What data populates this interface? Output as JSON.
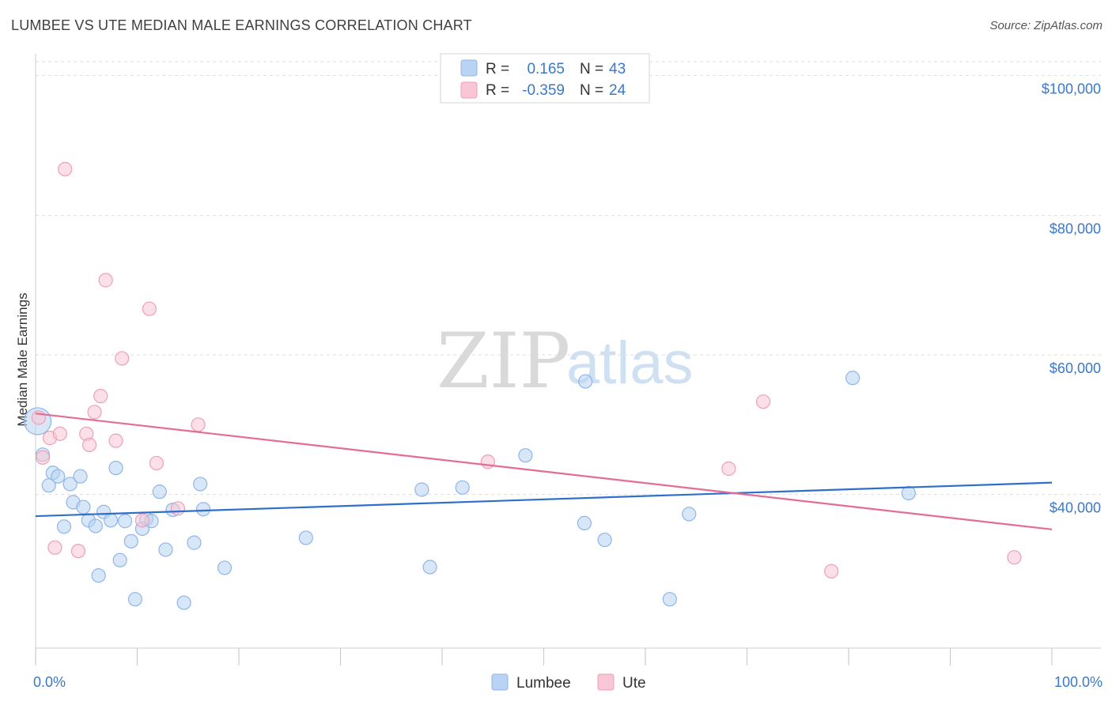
{
  "title": "LUMBEE VS UTE MEDIAN MALE EARNINGS CORRELATION CHART",
  "source": "Source: ZipAtlas.com",
  "watermark": {
    "zip": "ZIP",
    "atlas": "atlas"
  },
  "colors": {
    "lumbee_fill": "#b8d3f3",
    "lumbee_stroke": "#8fb6e6",
    "lumbee_line": "#2f6fcb",
    "ute_fill": "#f8c6d4",
    "ute_stroke": "#ee9fb7",
    "ute_line": "#e46c95",
    "axis_text": "#3a78c9",
    "grid": "#dddddd"
  },
  "legend": {
    "rows": [
      {
        "series": "Lumbee",
        "r_label": "R =",
        "r_value": "0.165",
        "n_label": "N =",
        "n_value": "43"
      },
      {
        "series": "Ute",
        "r_label": "R =",
        "r_value": "-0.359",
        "n_label": "N =",
        "n_value": "24"
      }
    ]
  },
  "bottom_legend": [
    "Lumbee",
    "Ute"
  ],
  "chart_data": {
    "type": "scatter",
    "title": "LUMBEE VS UTE MEDIAN MALE EARNINGS CORRELATION CHART",
    "xlabel": "",
    "ylabel": "Median Male Earnings",
    "xlim": [
      0,
      100
    ],
    "ylim": [
      18000,
      102000
    ],
    "x_tick_labels": [
      "0.0%",
      "100.0%"
    ],
    "y_ticks": [
      40000,
      60000,
      80000,
      100000
    ],
    "y_tick_labels": [
      "$40,000",
      "$60,000",
      "$80,000",
      "$100,000"
    ],
    "series": [
      {
        "name": "Lumbee",
        "r": 0.165,
        "n": 43,
        "trend": {
          "x": [
            0,
            100
          ],
          "y": [
            36900,
            41700
          ]
        },
        "points": [
          {
            "x": 0.2,
            "y": 50500,
            "big": true
          },
          {
            "x": 0.7,
            "y": 45700
          },
          {
            "x": 1.3,
            "y": 41300
          },
          {
            "x": 1.7,
            "y": 43100
          },
          {
            "x": 2.2,
            "y": 42600
          },
          {
            "x": 2.8,
            "y": 35400
          },
          {
            "x": 3.4,
            "y": 41500
          },
          {
            "x": 3.7,
            "y": 38900
          },
          {
            "x": 4.4,
            "y": 42600
          },
          {
            "x": 4.7,
            "y": 38200
          },
          {
            "x": 5.2,
            "y": 36300
          },
          {
            "x": 5.9,
            "y": 35500
          },
          {
            "x": 6.2,
            "y": 28400
          },
          {
            "x": 6.7,
            "y": 37500
          },
          {
            "x": 7.4,
            "y": 36300
          },
          {
            "x": 7.9,
            "y": 43800
          },
          {
            "x": 8.3,
            "y": 30600
          },
          {
            "x": 8.8,
            "y": 36200
          },
          {
            "x": 9.4,
            "y": 33300
          },
          {
            "x": 9.8,
            "y": 25000
          },
          {
            "x": 10.5,
            "y": 35100
          },
          {
            "x": 10.9,
            "y": 36500
          },
          {
            "x": 11.4,
            "y": 36200
          },
          {
            "x": 12.2,
            "y": 40400
          },
          {
            "x": 12.8,
            "y": 32100
          },
          {
            "x": 13.5,
            "y": 37800
          },
          {
            "x": 14.6,
            "y": 24500
          },
          {
            "x": 15.6,
            "y": 33100
          },
          {
            "x": 16.2,
            "y": 41500
          },
          {
            "x": 16.5,
            "y": 37900
          },
          {
            "x": 18.6,
            "y": 29500
          },
          {
            "x": 26.6,
            "y": 33800
          },
          {
            "x": 38.0,
            "y": 40700
          },
          {
            "x": 38.8,
            "y": 29600
          },
          {
            "x": 42.0,
            "y": 41000
          },
          {
            "x": 48.2,
            "y": 45600
          },
          {
            "x": 54.0,
            "y": 35900
          },
          {
            "x": 54.1,
            "y": 56200
          },
          {
            "x": 56.0,
            "y": 33500
          },
          {
            "x": 62.4,
            "y": 25000
          },
          {
            "x": 64.3,
            "y": 37200
          },
          {
            "x": 80.4,
            "y": 56700
          },
          {
            "x": 85.9,
            "y": 40200
          }
        ]
      },
      {
        "name": "Ute",
        "r": -0.359,
        "n": 24,
        "trend": {
          "x": [
            0,
            100
          ],
          "y": [
            51600,
            35000
          ]
        },
        "points": [
          {
            "x": 0.3,
            "y": 51000
          },
          {
            "x": 0.7,
            "y": 45300
          },
          {
            "x": 1.4,
            "y": 48100
          },
          {
            "x": 1.9,
            "y": 32400
          },
          {
            "x": 2.4,
            "y": 48700
          },
          {
            "x": 2.9,
            "y": 86600
          },
          {
            "x": 4.2,
            "y": 31900
          },
          {
            "x": 5.0,
            "y": 48700
          },
          {
            "x": 5.3,
            "y": 47100
          },
          {
            "x": 5.8,
            "y": 51800
          },
          {
            "x": 6.4,
            "y": 54100
          },
          {
            "x": 6.9,
            "y": 70700
          },
          {
            "x": 7.9,
            "y": 47700
          },
          {
            "x": 8.5,
            "y": 59500
          },
          {
            "x": 10.5,
            "y": 36300
          },
          {
            "x": 11.2,
            "y": 66600
          },
          {
            "x": 11.9,
            "y": 44500
          },
          {
            "x": 14.0,
            "y": 38000
          },
          {
            "x": 16.0,
            "y": 50000
          },
          {
            "x": 44.5,
            "y": 44700
          },
          {
            "x": 68.2,
            "y": 43700
          },
          {
            "x": 71.6,
            "y": 53300
          },
          {
            "x": 78.3,
            "y": 29000
          },
          {
            "x": 96.3,
            "y": 31000
          }
        ]
      }
    ]
  }
}
